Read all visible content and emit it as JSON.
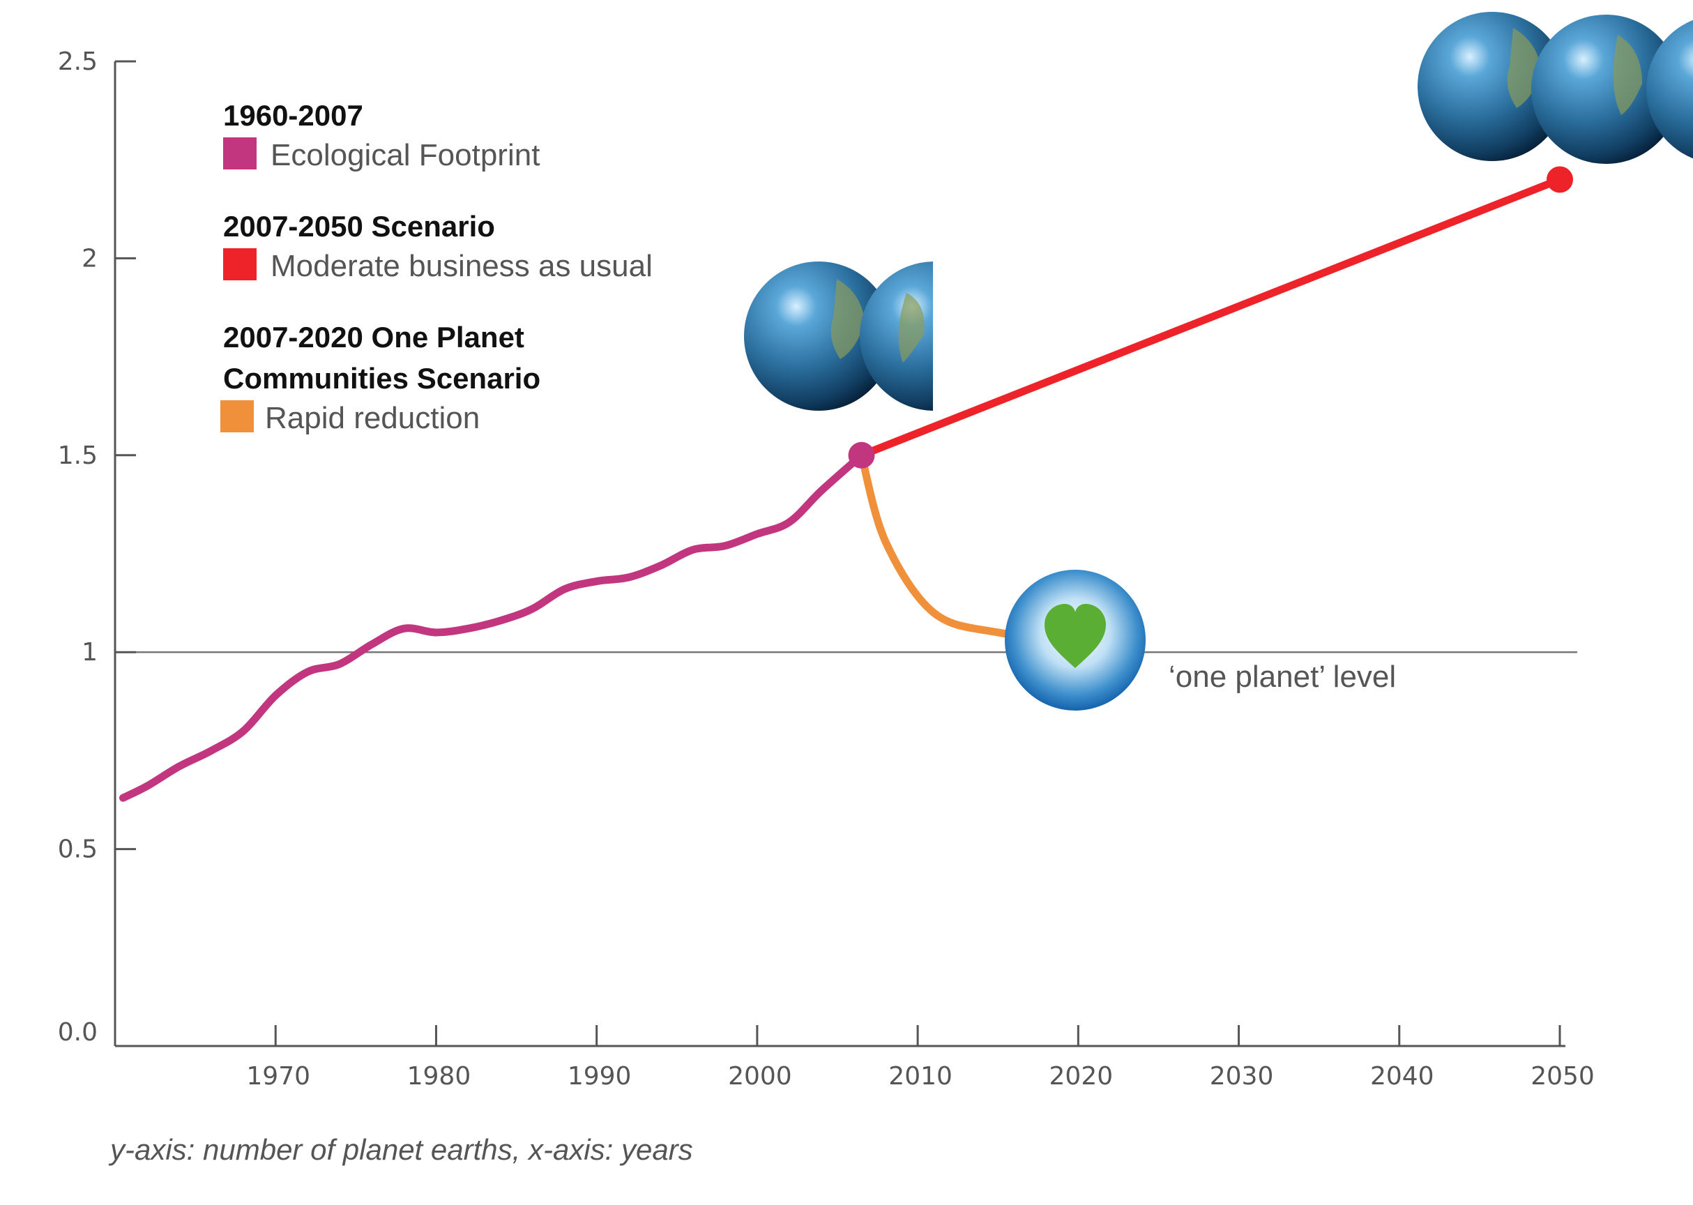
{
  "chart_data": {
    "type": "line",
    "caption": "y-axis: number of planet earths, x-axis: years",
    "x_ticks": [
      "1970",
      "1980",
      "1990",
      "2000",
      "2010",
      "2020",
      "2030",
      "2040",
      "2050"
    ],
    "y_ticks": [
      "0.0",
      "0.5",
      "1",
      "1.5",
      "2",
      "2.5"
    ],
    "xlim": [
      1960,
      2050
    ],
    "ylim": [
      0,
      2.5
    ],
    "grid": false,
    "legend_placement": "top-left",
    "reference_line": {
      "value": 1,
      "label": "‘one planet’ level"
    },
    "legend": [
      {
        "heading_lines": [
          "1960-2007"
        ],
        "label": "Ecological Footprint",
        "color": "#C2367F"
      },
      {
        "heading_lines": [
          "2007-2050 Scenario"
        ],
        "label": "Moderate business as usual",
        "color": "#EE2229"
      },
      {
        "heading_lines": [
          "2007-2020 One Planet",
          "Communities Scenario"
        ],
        "label": "Rapid reduction",
        "color": "#F0903A"
      }
    ],
    "series": [
      {
        "color": "#C2367F",
        "points": [
          [
            1960.5,
            0.63
          ],
          [
            1962,
            0.66
          ],
          [
            1964,
            0.71
          ],
          [
            1966,
            0.75
          ],
          [
            1968,
            0.8
          ],
          [
            1970,
            0.89
          ],
          [
            1972,
            0.95
          ],
          [
            1974,
            0.97
          ],
          [
            1976,
            1.02
          ],
          [
            1978,
            1.06
          ],
          [
            1980,
            1.05
          ],
          [
            1982,
            1.06
          ],
          [
            1984,
            1.08
          ],
          [
            1986,
            1.11
          ],
          [
            1988,
            1.16
          ],
          [
            1990,
            1.18
          ],
          [
            1992,
            1.19
          ],
          [
            1994,
            1.22
          ],
          [
            1996,
            1.26
          ],
          [
            1998,
            1.27
          ],
          [
            2000,
            1.3
          ],
          [
            2002,
            1.33
          ],
          [
            2004,
            1.41
          ],
          [
            2006.5,
            1.5
          ]
        ]
      },
      {
        "color": "#EE2229",
        "points": [
          [
            2006.5,
            1.5
          ],
          [
            2050,
            2.2
          ]
        ]
      },
      {
        "color": "#F0903A",
        "points": [
          [
            2006.5,
            1.5
          ],
          [
            2008,
            1.28
          ],
          [
            2011,
            1.1
          ],
          [
            2015,
            1.05
          ],
          [
            2020,
            1.03
          ]
        ]
      }
    ],
    "icons": [
      {
        "name": "earth-icon",
        "anchor_x": 2010,
        "anchor_y": 1.5,
        "count": 2
      },
      {
        "name": "earth-icon",
        "anchor_x": 2050,
        "anchor_y": 2.2,
        "count": 3
      },
      {
        "name": "heart-icon",
        "anchor_x": 2020,
        "anchor_y": 1.03
      }
    ]
  }
}
